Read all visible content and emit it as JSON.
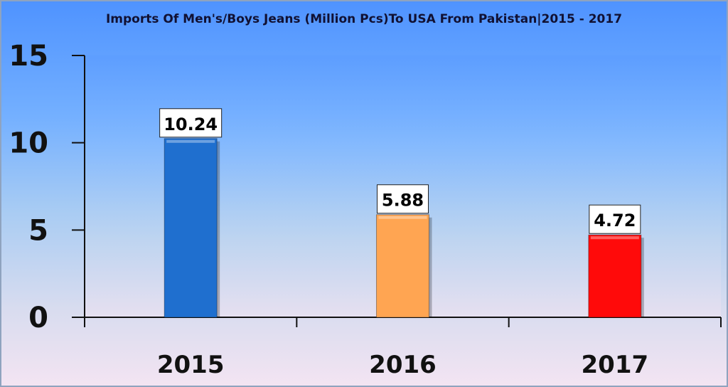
{
  "chart_data": {
    "type": "bar",
    "title": "Imports Of Men's/Boys Jeans (Million Pcs)To USA From Pakistan|2015 - 2017",
    "categories": [
      "2015",
      "2016",
      "2017"
    ],
    "values": [
      10.24,
      5.88,
      4.72
    ],
    "data_labels": [
      "10.24",
      "5.88",
      "4.72"
    ],
    "bar_colors": [
      "#1f6fcf",
      "#ffa552",
      "#ff0a0a"
    ],
    "ylim": [
      0,
      15
    ],
    "yticks": [
      "0",
      "5",
      "10",
      "15"
    ],
    "xlabel": "",
    "ylabel": "",
    "grid": false,
    "legend": "none"
  }
}
